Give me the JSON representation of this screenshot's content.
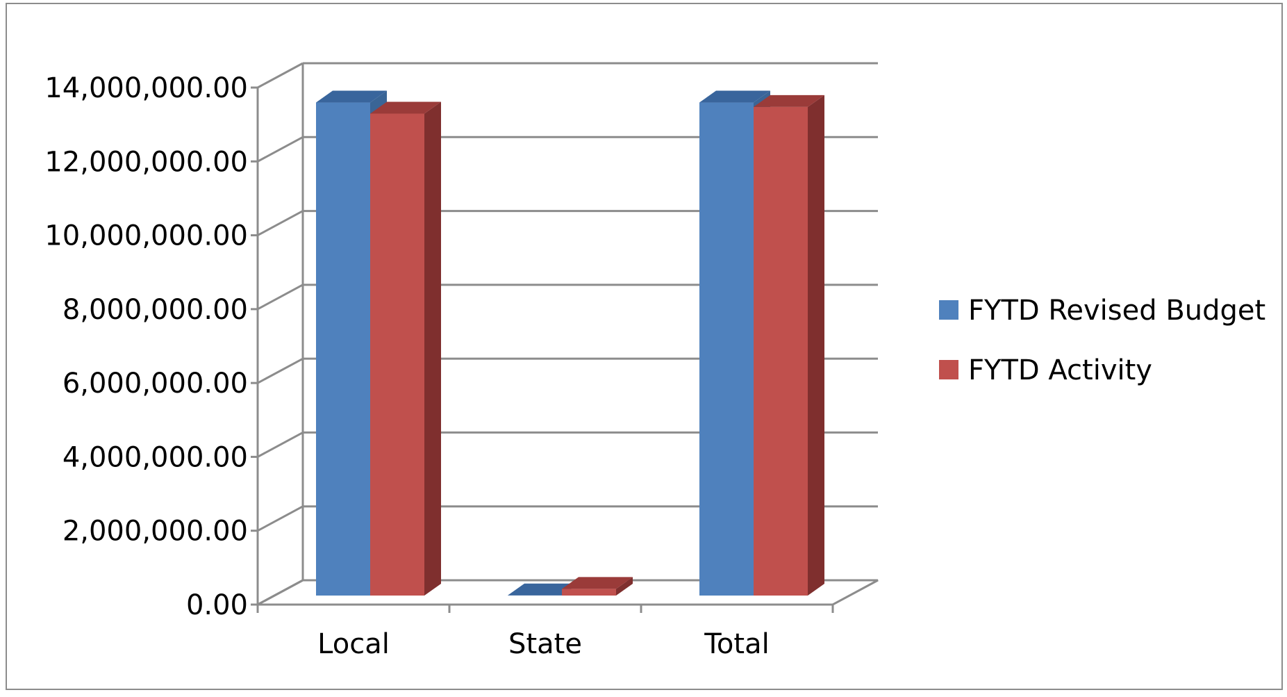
{
  "chart_data": {
    "type": "bar",
    "style": "3d-clustered-column",
    "title": "",
    "xlabel": "",
    "ylabel": "",
    "categories": [
      "Local",
      "State",
      "Total"
    ],
    "series": [
      {
        "name": "FYTD Revised Budget",
        "values": [
          13350000,
          5000,
          13350000
        ],
        "color": "#4f81bd",
        "side_color": "#3a6596",
        "top_color": "#39659c"
      },
      {
        "name": "FYTD Activity",
        "values": [
          13050000,
          180000,
          13230000
        ],
        "color": "#c0504d",
        "side_color": "#7f2f2e",
        "top_color": "#9a3b39"
      }
    ],
    "ylim": [
      0,
      14000000
    ],
    "yticks": [
      0,
      2000000,
      4000000,
      6000000,
      8000000,
      10000000,
      12000000,
      14000000
    ],
    "ytick_labels": [
      "0.00",
      "2,000,000.00",
      "4,000,000.00",
      "6,000,000.00",
      "8,000,000.00",
      "10,000,000.00",
      "12,000,000.00",
      "14,000,000.00"
    ],
    "grid": true,
    "legend_position": "right",
    "colors": {
      "gridline": "#8c8c8c",
      "frame": "#8c8c8c"
    }
  }
}
